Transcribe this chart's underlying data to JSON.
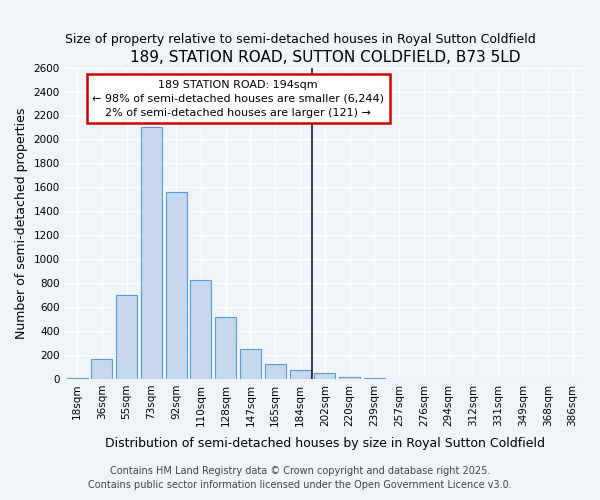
{
  "title": "189, STATION ROAD, SUTTON COLDFIELD, B73 5LD",
  "subtitle": "Size of property relative to semi-detached houses in Royal Sutton Coldfield",
  "xlabel": "Distribution of semi-detached houses by size in Royal Sutton Coldfield",
  "ylabel": "Number of semi-detached properties",
  "categories": [
    "18sqm",
    "36sqm",
    "55sqm",
    "73sqm",
    "92sqm",
    "110sqm",
    "128sqm",
    "147sqm",
    "165sqm",
    "184sqm",
    "202sqm",
    "220sqm",
    "239sqm",
    "257sqm",
    "276sqm",
    "294sqm",
    "312sqm",
    "331sqm",
    "349sqm",
    "368sqm",
    "386sqm"
  ],
  "values": [
    5,
    170,
    700,
    2100,
    1560,
    830,
    520,
    250,
    125,
    75,
    50,
    20,
    5,
    0,
    0,
    0,
    0,
    0,
    0,
    0,
    0
  ],
  "bar_color": "#c5d8ec",
  "bar_edge_color": "#5b9bd5",
  "marker_index": 9.5,
  "marker_color": "#1a1a2e",
  "annotation_box_edge": "#cc0000",
  "annotation_box_color": "#ffffff",
  "ann_line1": "189 STATION ROAD: 194sqm",
  "ann_line2": "← 98% of semi-detached houses are smaller (6,244)",
  "ann_line3": "2% of semi-detached houses are larger (121) →",
  "ylim": [
    0,
    2600
  ],
  "yticks": [
    0,
    200,
    400,
    600,
    800,
    1000,
    1200,
    1400,
    1600,
    1800,
    2000,
    2200,
    2400,
    2600
  ],
  "footer1": "Contains HM Land Registry data © Crown copyright and database right 2025.",
  "footer2": "Contains public sector information licensed under the Open Government Licence v3.0.",
  "bg_color": "#f0f4f8",
  "plot_bg_color": "#f0f4f8",
  "title_fontsize": 11,
  "subtitle_fontsize": 9,
  "axis_label_fontsize": 9,
  "tick_fontsize": 7.5,
  "footer_fontsize": 7,
  "ann_fontsize": 8
}
